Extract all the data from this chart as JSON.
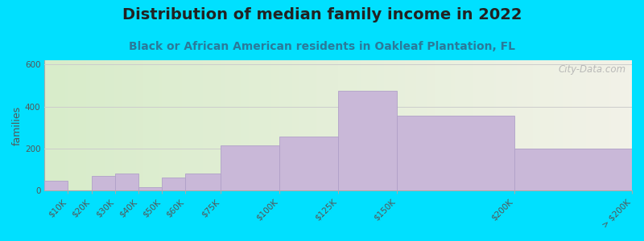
{
  "title": "Distribution of median family income in 2022",
  "subtitle": "Black or African American residents in Oakleaf Plantation, FL",
  "ylabel": "families",
  "bar_color": "#c9b8d8",
  "bar_edgecolor": "#b0a0c8",
  "background_figure": "#00e0ff",
  "background_axes_left": "#d8ecca",
  "background_axes_right": "#f2f2e8",
  "ylim": [
    0,
    620
  ],
  "yticks": [
    0,
    200,
    400,
    600
  ],
  "grid_color": "#cccccc",
  "title_fontsize": 14,
  "subtitle_fontsize": 10,
  "title_color": "#222222",
  "subtitle_color": "#2a7a9a",
  "ylabel_fontsize": 9,
  "tick_fontsize": 7.5,
  "tick_color": "#555555",
  "watermark": "City-Data.com",
  "bin_edges": [
    0,
    10,
    20,
    30,
    40,
    50,
    60,
    75,
    100,
    125,
    150,
    200,
    250
  ],
  "bin_heights": [
    45,
    0,
    70,
    80,
    15,
    60,
    80,
    215,
    255,
    475,
    355,
    200
  ],
  "tick_labels": [
    "$10K",
    "$20K",
    "$30K",
    "$40K",
    "$50K",
    "$60K",
    "$75K",
    "$100K",
    "$125K",
    "$150K",
    "$200K",
    "> $200K"
  ]
}
